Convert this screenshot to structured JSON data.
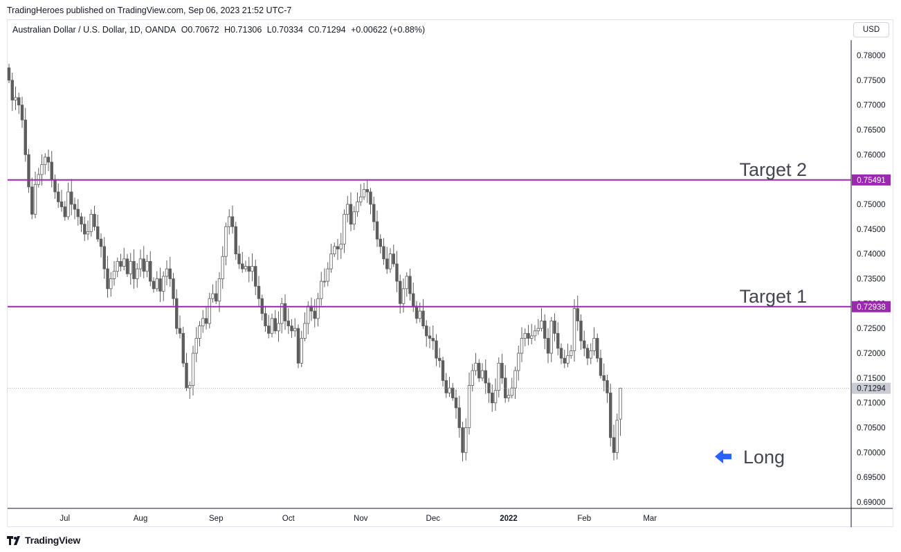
{
  "header": {
    "published_text": "TradingHeroes published on TradingView.com, Sep 06, 2023 21:52 UTC-7"
  },
  "legend": {
    "symbol": "Australian Dollar / U.S. Dollar, 1D, OANDA",
    "open": "O0.70672",
    "high": "H0.71306",
    "low": "L0.70334",
    "close": "C0.71294",
    "change": "+0.00622 (+0.88%)"
  },
  "currency_button": "USD",
  "footer": {
    "brand": "TradingView"
  },
  "colors": {
    "candle": "#5d5d5d",
    "target_line": "#9c27b0",
    "arrow": "#2962ff",
    "grid": "#f0f3fa",
    "axis_border": "#131722"
  },
  "chart_data": {
    "type": "candlestick",
    "ylim": [
      0.6885,
      0.7815
    ],
    "y_ticks": [
      "0.78000",
      "0.77500",
      "0.77000",
      "0.76500",
      "0.76000",
      "0.75500",
      "0.75000",
      "0.74500",
      "0.74000",
      "0.73500",
      "0.73000",
      "0.72500",
      "0.72000",
      "0.71500",
      "0.71000",
      "0.70500",
      "0.70000",
      "0.69500",
      "0.69000"
    ],
    "x_ticks": [
      {
        "label": "Jul",
        "bar": 17,
        "bold": false
      },
      {
        "label": "Aug",
        "bar": 40,
        "bold": false
      },
      {
        "label": "Sep",
        "bar": 63,
        "bold": false
      },
      {
        "label": "Oct",
        "bar": 85,
        "bold": false
      },
      {
        "label": "Nov",
        "bar": 107,
        "bold": false
      },
      {
        "label": "Dec",
        "bar": 129,
        "bold": false
      },
      {
        "label": "2022",
        "bar": 152,
        "bold": true
      },
      {
        "label": "Feb",
        "bar": 175,
        "bold": false
      },
      {
        "label": "Mar",
        "bar": 195,
        "bold": false
      }
    ],
    "closes": [
      0.775,
      0.771,
      0.7715,
      0.77,
      0.767,
      0.76,
      0.7535,
      0.748,
      0.754,
      0.756,
      0.758,
      0.7595,
      0.7585,
      0.755,
      0.7525,
      0.7505,
      0.7495,
      0.7475,
      0.7525,
      0.75,
      0.749,
      0.7475,
      0.746,
      0.744,
      0.7445,
      0.748,
      0.7455,
      0.743,
      0.7415,
      0.737,
      0.733,
      0.735,
      0.7365,
      0.7385,
      0.7375,
      0.739,
      0.736,
      0.7385,
      0.735,
      0.737,
      0.739,
      0.7365,
      0.7385,
      0.7345,
      0.733,
      0.735,
      0.7325,
      0.7355,
      0.737,
      0.735,
      0.731,
      0.725,
      0.724,
      0.718,
      0.713,
      0.7135,
      0.72,
      0.723,
      0.7255,
      0.727,
      0.726,
      0.731,
      0.732,
      0.7305,
      0.735,
      0.7395,
      0.7455,
      0.7475,
      0.7455,
      0.74,
      0.738,
      0.737,
      0.7375,
      0.7365,
      0.7375,
      0.7335,
      0.731,
      0.728,
      0.7255,
      0.724,
      0.727,
      0.7245,
      0.726,
      0.73,
      0.7265,
      0.7255,
      0.7245,
      0.725,
      0.718,
      0.723,
      0.726,
      0.7295,
      0.7285,
      0.727,
      0.731,
      0.7345,
      0.7345,
      0.737,
      0.74,
      0.7415,
      0.741,
      0.742,
      0.748,
      0.75,
      0.746,
      0.7485,
      0.7505,
      0.7515,
      0.753,
      0.7525,
      0.75,
      0.7465,
      0.743,
      0.7415,
      0.739,
      0.737,
      0.74,
      0.738,
      0.7345,
      0.73,
      0.733,
      0.7355,
      0.732,
      0.7295,
      0.727,
      0.7285,
      0.7255,
      0.7235,
      0.723,
      0.7225,
      0.719,
      0.7185,
      0.7145,
      0.712,
      0.713,
      0.711,
      0.709,
      0.705,
      0.7,
      0.705,
      0.7135,
      0.7165,
      0.718,
      0.715,
      0.7165,
      0.714,
      0.712,
      0.71,
      0.7125,
      0.718,
      0.715,
      0.711,
      0.7115,
      0.713,
      0.7165,
      0.72,
      0.723,
      0.724,
      0.723,
      0.7235,
      0.7245,
      0.725,
      0.7265,
      0.723,
      0.72,
      0.7265,
      0.724,
      0.721,
      0.719,
      0.718,
      0.7195,
      0.7205,
      0.729,
      0.7265,
      0.7225,
      0.721,
      0.719,
      0.7205,
      0.723,
      0.719,
      0.7155,
      0.7145,
      0.712,
      0.703,
      0.7,
      0.7065,
      0.7129
    ],
    "ohlc_current": {
      "open": 0.70672,
      "high": 0.71306,
      "low": 0.70334,
      "close": 0.71294
    },
    "last_price": {
      "value": 0.71294,
      "label": "0.71294"
    },
    "horizontal_lines": [
      {
        "value": 0.75491,
        "label": "0.75491",
        "annotation": "Target 2"
      },
      {
        "value": 0.72938,
        "label": "0.72938",
        "annotation": "Target 1"
      }
    ],
    "annotations": [
      {
        "text": "Long",
        "bar": 179,
        "value": 0.6992,
        "icon": "arrow-left-icon"
      }
    ],
    "grid": false
  }
}
